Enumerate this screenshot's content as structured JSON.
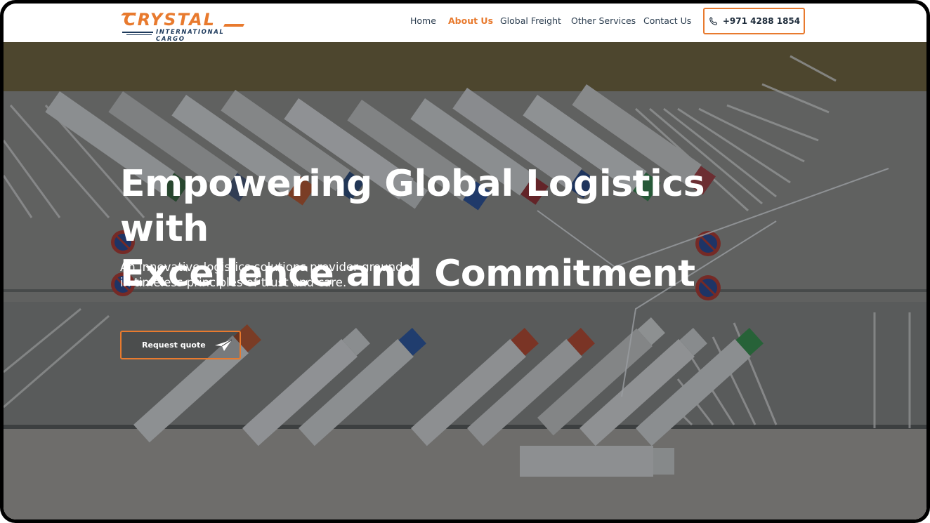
{
  "brand": {
    "name": "CRYSTAL",
    "tagline": "INTERNATIONAL CARGO",
    "accent_color": "#e87a2e",
    "dark_color": "#1d3a5c"
  },
  "nav": {
    "items": [
      {
        "label": "Home",
        "active": false
      },
      {
        "label": "About Us",
        "active": true
      },
      {
        "label": "Global Freight",
        "active": false
      },
      {
        "label": "Other Services",
        "active": false
      },
      {
        "label": "Contact Us",
        "active": false
      }
    ],
    "phone": {
      "icon": "phone-icon",
      "label": "+971 4288 1854"
    }
  },
  "hero": {
    "title_line1": "Empowering Global Logistics with",
    "title_line2": "Excellence and Commitment",
    "subtitle_line1": "An innovative logistics solutions provider grounded",
    "subtitle_line2": "in timeless principles of trust and care.",
    "cta": {
      "label": "Request quote",
      "icon": "paper-plane-icon"
    }
  }
}
